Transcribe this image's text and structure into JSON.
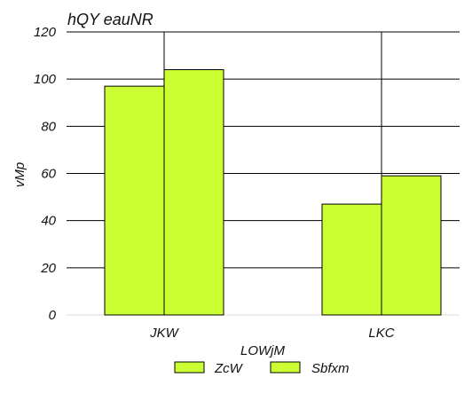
{
  "chart_data": {
    "type": "bar",
    "title": "hQY eauNR",
    "xlabel": "LOWjM",
    "ylabel": "vMp",
    "categories": [
      "JKW",
      "LKC"
    ],
    "series": [
      {
        "name": "ZcW",
        "values": [
          97,
          47
        ]
      },
      {
        "name": "Sbfxm",
        "values": [
          104,
          59
        ]
      }
    ],
    "ylim": [
      0,
      120
    ],
    "yticks": [
      0,
      20,
      40,
      60,
      80,
      100,
      120
    ],
    "grid": true,
    "legend_position": "bottom",
    "colors": {
      "bar_fill": "#ccff33",
      "bar_stroke": "#000000",
      "grid": "#000000",
      "text": "#111111"
    }
  }
}
